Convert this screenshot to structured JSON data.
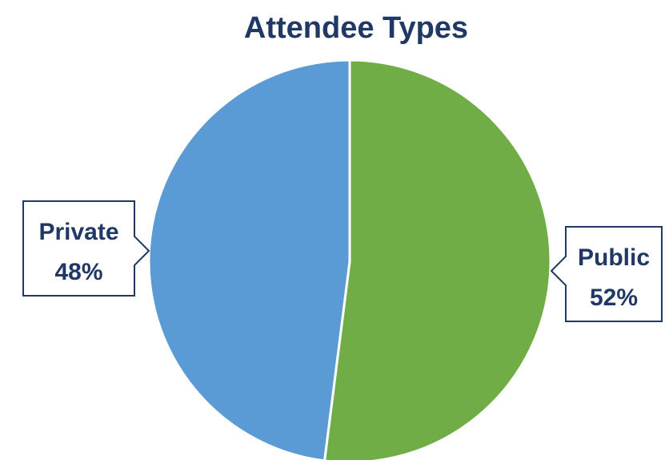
{
  "chart_data": {
    "type": "pie",
    "title": "Attendee Types",
    "slices": [
      {
        "label": "Public",
        "value": 52,
        "value_label": "52%",
        "color": "#70ad47"
      },
      {
        "label": "Private",
        "value": 48,
        "value_label": "48%",
        "color": "#5b9bd5"
      }
    ],
    "start": "12 o'clock",
    "direction": "clockwise",
    "legend": "none",
    "data_labels": "callouts outside slices"
  },
  "colors": {
    "title_text": "#1f3864",
    "label_text": "#1f3864",
    "label_border": "#1f3864",
    "slice_border": "#ffffff"
  }
}
